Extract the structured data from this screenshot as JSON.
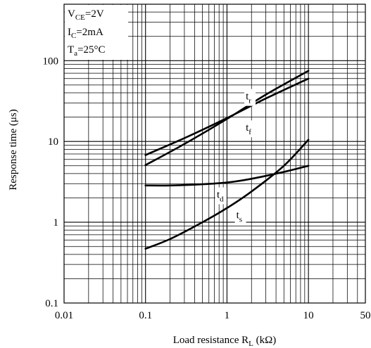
{
  "chart_data": {
    "type": "line",
    "x_scale": "log",
    "y_scale": "log",
    "xlim": [
      0.01,
      50
    ],
    "ylim": [
      0.1,
      500
    ],
    "xlabel": {
      "main": "Load resistance R",
      "sub": "L",
      "unit": " (kΩ)"
    },
    "ylabel": "Response time (μs)",
    "x_ticks": [
      {
        "value": 0.01,
        "label": "0.01"
      },
      {
        "value": 0.1,
        "label": "0.1"
      },
      {
        "value": 1,
        "label": "1"
      },
      {
        "value": 10,
        "label": "10"
      },
      {
        "value": 50,
        "label": "50"
      }
    ],
    "y_ticks": [
      {
        "value": 0.1,
        "label": "0.1"
      },
      {
        "value": 1,
        "label": "1"
      },
      {
        "value": 10,
        "label": "10"
      },
      {
        "value": 100,
        "label": "100"
      }
    ],
    "grid": true,
    "conditions": [
      {
        "main": "V",
        "sub": "CE",
        "rest": "=2V"
      },
      {
        "main": "I",
        "sub": "C",
        "rest": "=2mA"
      },
      {
        "main": "T",
        "sub": "a",
        "rest": "=25°C"
      }
    ],
    "series": [
      {
        "name": "t",
        "sub": "r",
        "label_at": [
          1.7,
          33
        ],
        "points": [
          [
            0.1,
            5.1
          ],
          [
            0.3,
            9.3
          ],
          [
            1,
            19
          ],
          [
            3,
            38
          ],
          [
            10,
            75
          ]
        ]
      },
      {
        "name": "t",
        "sub": "f",
        "label_at": [
          1.7,
          13.5
        ],
        "points": [
          [
            0.1,
            6.8
          ],
          [
            0.3,
            11
          ],
          [
            1,
            19.5
          ],
          [
            3,
            34
          ],
          [
            10,
            60
          ]
        ]
      },
      {
        "name": "t",
        "sub": "d",
        "label_at": [
          0.75,
          2.0
        ],
        "points": [
          [
            0.1,
            2.85
          ],
          [
            0.2,
            2.85
          ],
          [
            0.5,
            2.95
          ],
          [
            1,
            3.1
          ],
          [
            2,
            3.45
          ],
          [
            5,
            4.2
          ],
          [
            10,
            5.0
          ]
        ]
      },
      {
        "name": "t",
        "sub": "s",
        "label_at": [
          1.3,
          1.12
        ],
        "points": [
          [
            0.1,
            0.47
          ],
          [
            0.2,
            0.62
          ],
          [
            0.5,
            1.0
          ],
          [
            1,
            1.5
          ],
          [
            2,
            2.4
          ],
          [
            5,
            5.0
          ],
          [
            10,
            10.5
          ]
        ]
      }
    ]
  }
}
